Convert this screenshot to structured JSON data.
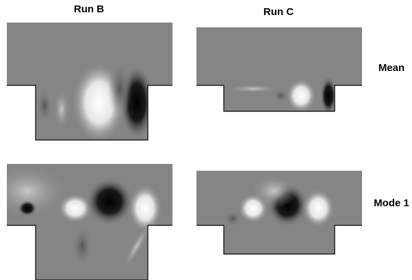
{
  "columns": [
    "Run B",
    "Run C"
  ],
  "rows": [
    "Mean",
    "Mode 1"
  ]
}
